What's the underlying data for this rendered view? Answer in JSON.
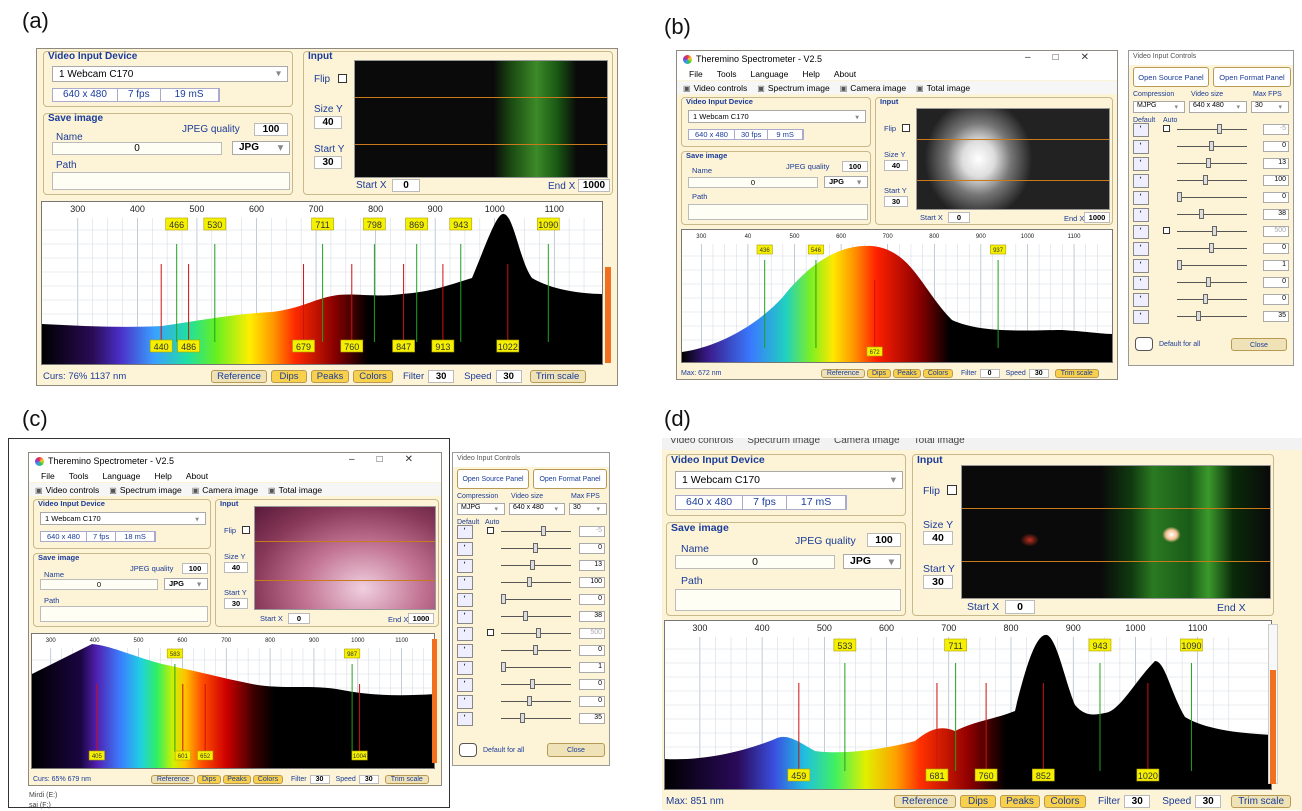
{
  "labels": {
    "a": "(a)",
    "b": "(b)",
    "c": "(c)",
    "d": "(d)"
  },
  "app": {
    "title": "Theremino Spectrometer - V2.5",
    "menu": [
      "File",
      "Tools",
      "Language",
      "Help",
      "About"
    ],
    "toolbar": [
      "Video controls",
      "Spectrum image",
      "Camera image",
      "Total image"
    ],
    "video_group": "Video Input Device",
    "device": "1 Webcam C170",
    "save_group": "Save image",
    "name_label": "Name",
    "jpeg_label": "JPEG quality",
    "jpeg_value": "100",
    "name_value": "0",
    "format": "JPG",
    "path_label": "Path",
    "input_group": "Input",
    "flip_label": "Flip",
    "sizey_label": "Size Y",
    "sizey_value": "40",
    "starty_label": "Start Y",
    "starty_value": "30",
    "startx_label": "Start X",
    "startx_value": "0",
    "endx_label": "End X",
    "endx_value": "1000",
    "buttons": {
      "reference": "Reference",
      "dips": "Dips",
      "peaks": "Peaks",
      "colors": "Colors",
      "trim": "Trim scale"
    },
    "filter_label": "Filter",
    "speed_label": "Speed",
    "speed_value": "30",
    "ticks": [
      "300",
      "400",
      "500",
      "600",
      "700",
      "800",
      "900",
      "1000",
      "1100"
    ]
  },
  "panels": {
    "a": {
      "info": [
        "640 x 480",
        "7 fps",
        "19 mS"
      ],
      "status": "Curs: 76%  1137 nm",
      "filter": "30",
      "peaks": [
        "466",
        "530",
        "711",
        "798",
        "869",
        "943",
        "1090"
      ],
      "dips": [
        "440",
        "486",
        "679",
        "760",
        "847",
        "913",
        "1022"
      ]
    },
    "b": {
      "info": [
        "640 x 480",
        "30 fps",
        "9 mS"
      ],
      "status": "Max: 672 nm",
      "filter": "0",
      "peaks": [
        "436",
        "546",
        "937"
      ],
      "dips": [
        "672"
      ],
      "tick_400": "40",
      "tick_500": "500"
    },
    "c": {
      "info": [
        "640 x 480",
        "7 fps",
        "18 mS"
      ],
      "status": "Curs: 65%  679 nm",
      "filter": "30",
      "peaks": [
        "583",
        "987"
      ],
      "dips": [
        "405",
        "601",
        "652",
        "1004"
      ]
    },
    "d": {
      "info": [
        "640 x 480",
        "7 fps",
        "17 mS"
      ],
      "status": "Max: 851 nm",
      "filter": "30",
      "peaks": [
        "533",
        "711",
        "943",
        "1090"
      ],
      "dips": [
        "459",
        "681",
        "760",
        "852",
        "1020"
      ],
      "clipped_toolbar": [
        "Video controls",
        "Spectrum image",
        "Camera image",
        "Total image"
      ]
    }
  },
  "vic": {
    "title": "Video Input Controls",
    "open_source": "Open Source Panel",
    "open_format": "Open Format Panel",
    "compression_label": "Compression",
    "compression": "MJPG",
    "size_label": "Video size",
    "size": "640 x 480",
    "fps_label": "Max FPS",
    "fps": "30",
    "default_label": "Default",
    "auto_label": "Auto",
    "values": [
      "-5",
      "0",
      "13",
      "100",
      "0",
      "38",
      "500",
      "0",
      "1",
      "0",
      "0",
      "35"
    ],
    "default_all": "Default for all",
    "close": "Close"
  },
  "c_sidebar": [
    "Mirdi (E:)",
    "sai (F:)"
  ]
}
